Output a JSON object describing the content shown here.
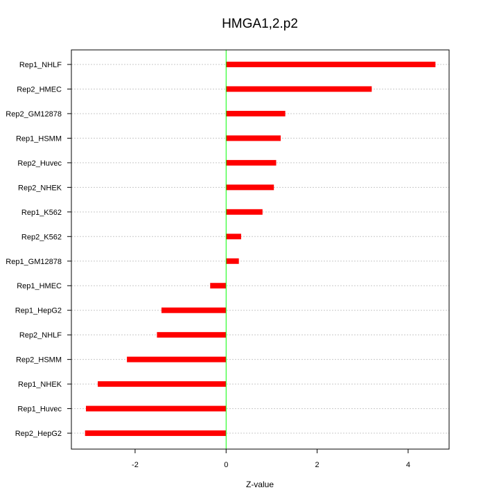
{
  "chart_data": {
    "type": "bar",
    "orientation": "horizontal",
    "title": "HMGA1,2.p2",
    "xlabel": "Z-value",
    "ylabel": "",
    "categories": [
      "Rep1_NHLF",
      "Rep2_HMEC",
      "Rep2_GM12878",
      "Rep1_HSMM",
      "Rep2_Huvec",
      "Rep2_NHEK",
      "Rep1_K562",
      "Rep2_K562",
      "Rep1_GM12878",
      "Rep1_HMEC",
      "Rep1_HepG2",
      "Rep2_NHLF",
      "Rep2_HSMM",
      "Rep1_NHEK",
      "Rep1_Huvec",
      "Rep2_HepG2"
    ],
    "values": [
      4.6,
      3.2,
      1.3,
      1.2,
      1.1,
      1.05,
      0.8,
      0.33,
      0.28,
      -0.35,
      -1.42,
      -1.52,
      -2.18,
      -2.82,
      -3.08,
      -3.1
    ],
    "xlim": [
      -3.4,
      4.9
    ],
    "xticks": [
      -2,
      0,
      2,
      4
    ],
    "bar_color": "#ff0000",
    "zero_line_color": "#00ff00",
    "grid": "horizontal dotted"
  }
}
